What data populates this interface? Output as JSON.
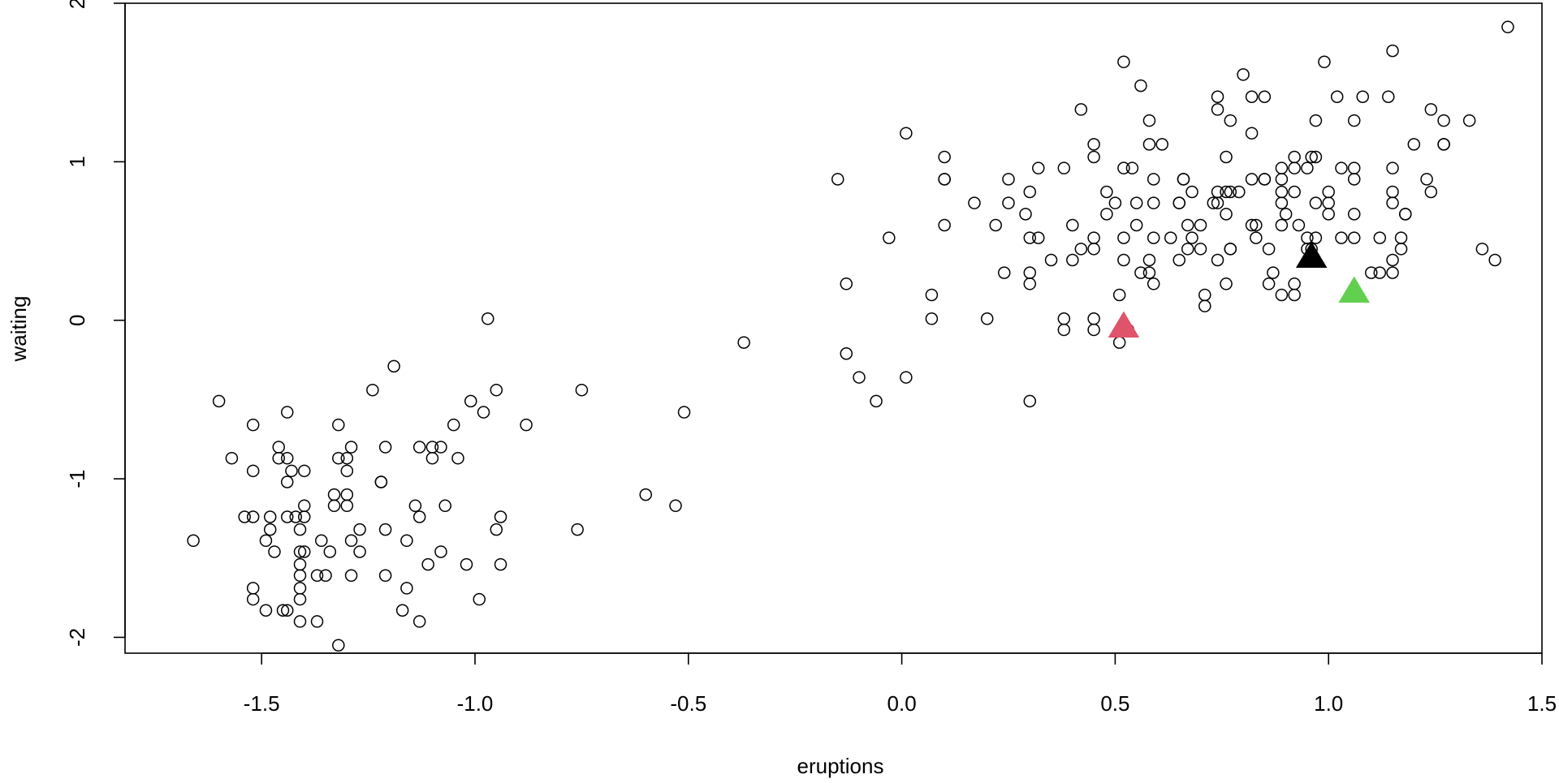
{
  "chart_data": {
    "type": "scatter",
    "title": "",
    "xlabel": "eruptions",
    "ylabel": "waiting",
    "xlim": [
      -1.82,
      1.5
    ],
    "ylim": [
      -2.1,
      2.0
    ],
    "grid": false,
    "x_ticks": [
      -1.5,
      -1.0,
      -0.5,
      0.0,
      0.5,
      1.0,
      1.5
    ],
    "x_tick_labels": [
      "-1.5",
      "-1.0",
      "-0.5",
      "0.0",
      "0.5",
      "1.0",
      "1.5"
    ],
    "y_ticks": [
      -2,
      -1,
      0,
      1,
      2
    ],
    "y_tick_labels": [
      "-2",
      "-1",
      "0",
      "1",
      "2"
    ],
    "series": [
      {
        "marker": "open-circle",
        "color": "#000000",
        "points": [
          [
            -1.66,
            -1.39
          ],
          [
            -1.6,
            -0.51
          ],
          [
            -1.57,
            -0.87
          ],
          [
            -1.54,
            -1.24
          ],
          [
            -1.52,
            -0.66
          ],
          [
            -1.52,
            -0.95
          ],
          [
            -1.52,
            -1.24
          ],
          [
            -1.52,
            -1.69
          ],
          [
            -1.52,
            -1.76
          ],
          [
            -1.49,
            -1.39
          ],
          [
            -1.49,
            -1.83
          ],
          [
            -1.48,
            -1.24
          ],
          [
            -1.48,
            -1.32
          ],
          [
            -1.47,
            -1.46
          ],
          [
            -1.46,
            -0.8
          ],
          [
            -1.46,
            -0.87
          ],
          [
            -1.45,
            -1.83
          ],
          [
            -1.44,
            -0.58
          ],
          [
            -1.44,
            -0.87
          ],
          [
            -1.44,
            -1.02
          ],
          [
            -1.44,
            -1.24
          ],
          [
            -1.44,
            -1.83
          ],
          [
            -1.43,
            -0.95
          ],
          [
            -1.42,
            -1.24
          ],
          [
            -1.41,
            -1.32
          ],
          [
            -1.41,
            -1.46
          ],
          [
            -1.41,
            -1.54
          ],
          [
            -1.41,
            -1.61
          ],
          [
            -1.41,
            -1.69
          ],
          [
            -1.41,
            -1.76
          ],
          [
            -1.41,
            -1.9
          ],
          [
            -1.4,
            -0.95
          ],
          [
            -1.4,
            -1.17
          ],
          [
            -1.4,
            -1.24
          ],
          [
            -1.4,
            -1.46
          ],
          [
            -1.37,
            -1.61
          ],
          [
            -1.37,
            -1.9
          ],
          [
            -1.36,
            -1.39
          ],
          [
            -1.35,
            -1.61
          ],
          [
            -1.34,
            -1.46
          ],
          [
            -1.33,
            -1.1
          ],
          [
            -1.33,
            -1.17
          ],
          [
            -1.32,
            -0.66
          ],
          [
            -1.32,
            -0.87
          ],
          [
            -1.32,
            -2.05
          ],
          [
            -1.3,
            -0.87
          ],
          [
            -1.3,
            -0.95
          ],
          [
            -1.3,
            -1.1
          ],
          [
            -1.3,
            -1.17
          ],
          [
            -1.29,
            -0.8
          ],
          [
            -1.29,
            -1.39
          ],
          [
            -1.29,
            -1.61
          ],
          [
            -1.27,
            -1.32
          ],
          [
            -1.27,
            -1.46
          ],
          [
            -1.24,
            -0.44
          ],
          [
            -1.22,
            -1.02
          ],
          [
            -1.22,
            -1.02
          ],
          [
            -1.21,
            -0.8
          ],
          [
            -1.21,
            -1.32
          ],
          [
            -1.21,
            -1.61
          ],
          [
            -1.19,
            -0.29
          ],
          [
            -1.17,
            -1.83
          ],
          [
            -1.16,
            -1.39
          ],
          [
            -1.16,
            -1.69
          ],
          [
            -1.14,
            -1.17
          ],
          [
            -1.13,
            -0.8
          ],
          [
            -1.13,
            -1.24
          ],
          [
            -1.13,
            -1.9
          ],
          [
            -1.11,
            -1.54
          ],
          [
            -1.1,
            -0.8
          ],
          [
            -1.1,
            -0.87
          ],
          [
            -1.08,
            -0.8
          ],
          [
            -1.08,
            -1.46
          ],
          [
            -1.07,
            -1.17
          ],
          [
            -1.05,
            -0.66
          ],
          [
            -1.04,
            -0.87
          ],
          [
            -1.02,
            -1.54
          ],
          [
            -1.01,
            -0.51
          ],
          [
            -0.99,
            -1.76
          ],
          [
            -0.98,
            -0.58
          ],
          [
            -0.97,
            0.01
          ],
          [
            -0.95,
            -0.44
          ],
          [
            -0.95,
            -1.32
          ],
          [
            -0.94,
            -1.24
          ],
          [
            -0.94,
            -1.54
          ],
          [
            -0.88,
            -0.66
          ],
          [
            -0.76,
            -1.32
          ],
          [
            -0.75,
            -0.44
          ],
          [
            -0.6,
            -1.1
          ],
          [
            -0.53,
            -1.17
          ],
          [
            -0.51,
            -0.58
          ],
          [
            -0.37,
            -0.14
          ],
          [
            -0.15,
            0.89
          ],
          [
            -0.13,
            0.23
          ],
          [
            -0.13,
            -0.21
          ],
          [
            -0.1,
            -0.36
          ],
          [
            -0.06,
            -0.51
          ],
          [
            -0.03,
            0.52
          ],
          [
            0.01,
            1.18
          ],
          [
            0.01,
            -0.36
          ],
          [
            0.07,
            0.16
          ],
          [
            0.07,
            0.01
          ],
          [
            0.1,
            1.03
          ],
          [
            0.1,
            0.89
          ],
          [
            0.1,
            0.89
          ],
          [
            0.1,
            0.6
          ],
          [
            0.17,
            0.74
          ],
          [
            0.2,
            0.01
          ],
          [
            0.22,
            0.6
          ],
          [
            0.24,
            0.3
          ],
          [
            0.25,
            0.89
          ],
          [
            0.25,
            0.74
          ],
          [
            0.29,
            0.67
          ],
          [
            0.3,
            0.81
          ],
          [
            0.3,
            0.52
          ],
          [
            0.3,
            0.3
          ],
          [
            0.3,
            0.23
          ],
          [
            0.3,
            -0.51
          ],
          [
            0.32,
            0.96
          ],
          [
            0.32,
            0.52
          ],
          [
            0.35,
            0.38
          ],
          [
            0.38,
            0.96
          ],
          [
            0.38,
            0.01
          ],
          [
            0.38,
            -0.06
          ],
          [
            0.4,
            0.6
          ],
          [
            0.4,
            0.38
          ],
          [
            0.42,
            1.33
          ],
          [
            0.42,
            0.45
          ],
          [
            0.45,
            1.11
          ],
          [
            0.45,
            1.03
          ],
          [
            0.45,
            0.52
          ],
          [
            0.45,
            0.45
          ],
          [
            0.45,
            0.01
          ],
          [
            0.45,
            -0.06
          ],
          [
            0.48,
            0.81
          ],
          [
            0.48,
            0.67
          ],
          [
            0.5,
            0.74
          ],
          [
            0.51,
            0.16
          ],
          [
            0.51,
            -0.14
          ],
          [
            0.52,
            1.63
          ],
          [
            0.52,
            0.96
          ],
          [
            0.52,
            0.52
          ],
          [
            0.52,
            0.38
          ],
          [
            0.54,
            0.96
          ],
          [
            0.55,
            0.6
          ],
          [
            0.55,
            0.74
          ],
          [
            0.56,
            1.48
          ],
          [
            0.56,
            0.3
          ],
          [
            0.58,
            1.26
          ],
          [
            0.58,
            1.11
          ],
          [
            0.58,
            0.38
          ],
          [
            0.58,
            0.3
          ],
          [
            0.59,
            0.89
          ],
          [
            0.59,
            0.74
          ],
          [
            0.59,
            0.52
          ],
          [
            0.59,
            0.23
          ],
          [
            0.61,
            1.11
          ],
          [
            0.63,
            0.52
          ],
          [
            0.65,
            0.74
          ],
          [
            0.65,
            0.74
          ],
          [
            0.65,
            0.38
          ],
          [
            0.66,
            0.89
          ],
          [
            0.66,
            0.89
          ],
          [
            0.67,
            0.6
          ],
          [
            0.67,
            0.45
          ],
          [
            0.68,
            0.81
          ],
          [
            0.68,
            0.52
          ],
          [
            0.7,
            0.6
          ],
          [
            0.7,
            0.45
          ],
          [
            0.71,
            0.16
          ],
          [
            0.71,
            0.09
          ],
          [
            0.73,
            0.74
          ],
          [
            0.74,
            1.41
          ],
          [
            0.74,
            1.33
          ],
          [
            0.74,
            0.81
          ],
          [
            0.74,
            0.74
          ],
          [
            0.74,
            0.38
          ],
          [
            0.76,
            1.03
          ],
          [
            0.76,
            0.81
          ],
          [
            0.76,
            0.67
          ],
          [
            0.76,
            0.23
          ],
          [
            0.77,
            1.26
          ],
          [
            0.77,
            0.81
          ],
          [
            0.77,
            0.45
          ],
          [
            0.77,
            0.45
          ],
          [
            0.79,
            0.81
          ],
          [
            0.8,
            1.55
          ],
          [
            0.82,
            1.41
          ],
          [
            0.82,
            1.18
          ],
          [
            0.82,
            0.89
          ],
          [
            0.82,
            0.6
          ],
          [
            0.83,
            0.6
          ],
          [
            0.83,
            0.52
          ],
          [
            0.85,
            1.41
          ],
          [
            0.85,
            0.89
          ],
          [
            0.85,
            0.89
          ],
          [
            0.86,
            0.45
          ],
          [
            0.86,
            0.23
          ],
          [
            0.87,
            0.3
          ],
          [
            0.89,
            0.96
          ],
          [
            0.89,
            0.89
          ],
          [
            0.89,
            0.81
          ],
          [
            0.89,
            0.74
          ],
          [
            0.89,
            0.6
          ],
          [
            0.89,
            0.16
          ],
          [
            0.9,
            0.67
          ],
          [
            0.92,
            1.03
          ],
          [
            0.92,
            0.96
          ],
          [
            0.92,
            0.81
          ],
          [
            0.92,
            0.23
          ],
          [
            0.92,
            0.16
          ],
          [
            0.93,
            0.6
          ],
          [
            0.95,
            0.96
          ],
          [
            0.95,
            0.52
          ],
          [
            0.95,
            0.45
          ],
          [
            0.96,
            1.03
          ],
          [
            0.96,
            0.45
          ],
          [
            0.97,
            1.26
          ],
          [
            0.97,
            1.03
          ],
          [
            0.97,
            0.74
          ],
          [
            0.97,
            0.52
          ],
          [
            0.99,
            1.63
          ],
          [
            1.0,
            0.81
          ],
          [
            1.0,
            0.74
          ],
          [
            1.0,
            0.67
          ],
          [
            1.02,
            1.41
          ],
          [
            1.03,
            0.96
          ],
          [
            1.03,
            0.52
          ],
          [
            1.06,
            1.26
          ],
          [
            1.06,
            0.96
          ],
          [
            1.06,
            0.89
          ],
          [
            1.06,
            0.67
          ],
          [
            1.06,
            0.52
          ],
          [
            1.08,
            1.41
          ],
          [
            1.1,
            0.3
          ],
          [
            1.12,
            0.3
          ],
          [
            1.12,
            0.52
          ],
          [
            1.14,
            1.41
          ],
          [
            1.15,
            1.7
          ],
          [
            1.15,
            0.96
          ],
          [
            1.15,
            0.81
          ],
          [
            1.15,
            0.74
          ],
          [
            1.15,
            0.38
          ],
          [
            1.15,
            0.3
          ],
          [
            1.17,
            0.52
          ],
          [
            1.17,
            0.45
          ],
          [
            1.18,
            0.67
          ],
          [
            1.18,
            0.67
          ],
          [
            1.2,
            1.11
          ],
          [
            1.23,
            0.89
          ],
          [
            1.24,
            1.33
          ],
          [
            1.24,
            0.81
          ],
          [
            1.27,
            1.26
          ],
          [
            1.27,
            1.11
          ],
          [
            1.27,
            1.11
          ],
          [
            1.33,
            1.26
          ],
          [
            1.36,
            0.45
          ],
          [
            1.39,
            0.38
          ],
          [
            1.42,
            1.85
          ],
          [
            0.53,
            -0.06
          ]
        ]
      }
    ],
    "highlights": [
      {
        "marker": "filled-triangle",
        "color": "#000000",
        "x": 0.96,
        "y": 0.4
      },
      {
        "marker": "filled-triangle",
        "color": "#DF536B",
        "x": 0.52,
        "y": -0.04
      },
      {
        "marker": "filled-triangle",
        "color": "#61D04F",
        "x": 1.06,
        "y": 0.18
      }
    ]
  }
}
